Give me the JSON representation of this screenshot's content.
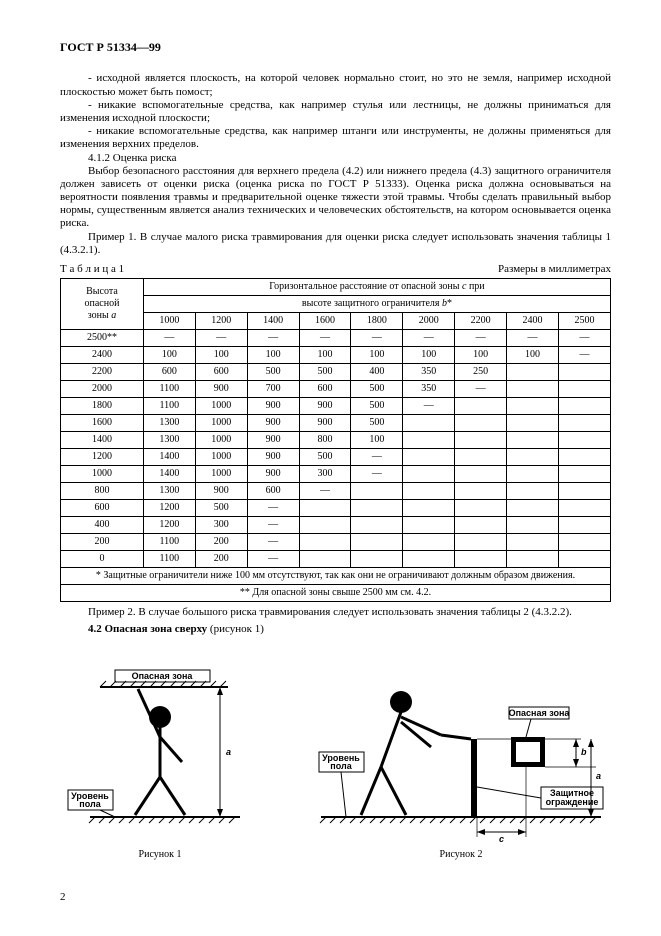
{
  "header": {
    "standard_code": "ГОСТ Р 51334—99"
  },
  "intro": {
    "p1": "- исходной является плоскость, на которой человек нормально стоит, но это не земля, например исходной плоскостью может быть помост;",
    "p2": "- никакие вспомогательные средства, как например стулья или лестницы, не должны приниматься для изменения исходной плоскости;",
    "p3": "- никакие вспомогательные средства, как например штанги или инструменты, не должны применяться для изменения верхних пределов.",
    "sec_num": "4.1.2  Оценка риска",
    "p4": "Выбор безопасного расстояния для верхнего предела (4.2) или нижнего предела (4.3) защитного ограничителя должен зависеть от оценки риска (оценка риска по ГОСТ Р 51333). Оценка риска должна основываться на вероятности появления травмы и предварительной оценке тяжести этой травмы. Чтобы сделать правильный выбор нормы, существенным является анализ технических и человеческих обстоятельств, на котором основывается оценка риска.",
    "p5": "Пример 1. В случае малого риска травмирования для оценки риска следует использовать значения таблицы 1 (4.3.2.1)."
  },
  "table": {
    "caption_left": "Т а б л и ц а  1",
    "caption_right": "Размеры в миллиметрах",
    "row_header_line1": "Высота",
    "row_header_line2": "опасной",
    "row_header_line3": "зоны ",
    "row_header_var": "a",
    "span_header_line1": "Горизонтальное расстояние от опасной зоны ",
    "span_header_var1": "c",
    "span_header_line1_suffix": " при",
    "span_header_line2": "высоте защитного ограничителя ",
    "span_header_var2": "b",
    "span_header_suffix": "*",
    "col_heads": [
      "1000",
      "1200",
      "1400",
      "1600",
      "1800",
      "2000",
      "2200",
      "2400",
      "2500"
    ],
    "rows": [
      {
        "h": "2500**",
        "v": [
          "—",
          "—",
          "—",
          "—",
          "—",
          "—",
          "—",
          "—",
          "—"
        ]
      },
      {
        "h": "2400",
        "v": [
          "100",
          "100",
          "100",
          "100",
          "100",
          "100",
          "100",
          "100",
          "—"
        ]
      },
      {
        "h": "2200",
        "v": [
          "600",
          "600",
          "500",
          "500",
          "400",
          "350",
          "250",
          "",
          ""
        ]
      },
      {
        "h": "2000",
        "v": [
          "1100",
          "900",
          "700",
          "600",
          "500",
          "350",
          "—",
          "",
          ""
        ]
      },
      {
        "h": "1800",
        "v": [
          "1100",
          "1000",
          "900",
          "900",
          "500",
          "—",
          "",
          "",
          ""
        ]
      },
      {
        "h": "1600",
        "v": [
          "1300",
          "1000",
          "900",
          "900",
          "500",
          "",
          "",
          "",
          ""
        ]
      },
      {
        "h": "1400",
        "v": [
          "1300",
          "1000",
          "900",
          "800",
          "100",
          "",
          "",
          "",
          ""
        ]
      },
      {
        "h": "1200",
        "v": [
          "1400",
          "1000",
          "900",
          "500",
          "—",
          "",
          "",
          "",
          ""
        ]
      },
      {
        "h": "1000",
        "v": [
          "1400",
          "1000",
          "900",
          "300",
          "—",
          "",
          "",
          "",
          ""
        ]
      },
      {
        "h": "800",
        "v": [
          "1300",
          "900",
          "600",
          "—",
          "",
          "",
          "",
          "",
          ""
        ]
      },
      {
        "h": "600",
        "v": [
          "1200",
          "500",
          "—",
          "",
          "",
          "",
          "",
          "",
          ""
        ]
      },
      {
        "h": "400",
        "v": [
          "1200",
          "300",
          "—",
          "",
          "",
          "",
          "",
          "",
          ""
        ]
      },
      {
        "h": "200",
        "v": [
          "1100",
          "200",
          "—",
          "",
          "",
          "",
          "",
          "",
          ""
        ]
      },
      {
        "h": "0",
        "v": [
          "1100",
          "200",
          "—",
          "",
          "",
          "",
          "",
          "",
          ""
        ]
      }
    ],
    "note1_marker": "*",
    "note1": " Защитные ограничители ниже 100 мм отсутствуют, так как они не ограничивают должным образом движения.",
    "note2_marker": "**",
    "note2": " Для опасной зоны свыше 2500 мм см. 4.2."
  },
  "after": {
    "p1": "Пример 2. В случае большого риска травмирования следует использовать значения таблицы 2 (4.3.2.2).",
    "sec": "4.2  Опасная зона сверху",
    "sec_suffix": " (рисунок 1)"
  },
  "fig1": {
    "label_top": "Опасная зона",
    "label_floor": "Уровень пола",
    "dim": "a",
    "caption": "Рисунок 1"
  },
  "fig2": {
    "label_zone": "Опасная зона",
    "label_floor": "Уровень пола",
    "label_guard": "Защитное ограждение",
    "dim_c": "c",
    "dim_b": "b",
    "dim_a": "a",
    "caption": "Рисунок 2"
  },
  "page_number": "2"
}
